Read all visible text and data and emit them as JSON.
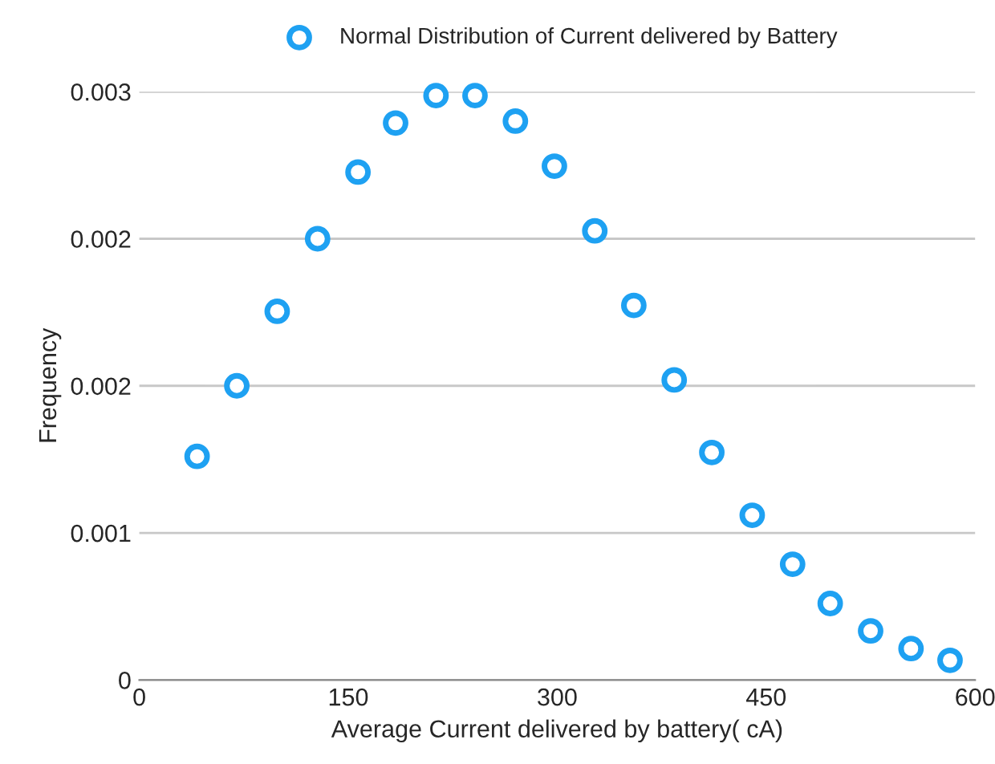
{
  "chart_data": {
    "type": "scatter",
    "xlabel": "Average Current delivered by battery( cA)",
    "ylabel": "Frequency",
    "x": [
      41.5,
      70,
      99,
      128,
      157,
      184,
      213,
      241,
      270,
      298,
      327,
      355,
      384,
      411,
      440,
      469,
      496,
      525,
      554,
      582
    ],
    "series": [
      {
        "name": "Normal Distribution of Current delivered by Battery",
        "color": "#1ea1f2",
        "values": [
          0.00114,
          0.0015,
          0.00188,
          0.00225,
          0.00259,
          0.00284,
          0.00298,
          0.00298,
          0.00285,
          0.00262,
          0.00229,
          0.00191,
          0.00153,
          0.00116,
          0.00084,
          0.00059,
          0.00039,
          0.00025,
          0.00016,
          0.0001
        ]
      }
    ],
    "xlim": [
      0,
      600
    ],
    "xticks": [
      0,
      150,
      300,
      450,
      600
    ],
    "ylim": [
      0,
      0.003
    ],
    "yticks": [
      0,
      {
        "value": 0.00075,
        "label": "0.001"
      },
      {
        "value": 0.0015,
        "label": "0.002"
      },
      {
        "value": 0.00225,
        "label": "0.002"
      },
      0.003
    ],
    "grid": "y",
    "legend": "top",
    "marker": "circle"
  }
}
